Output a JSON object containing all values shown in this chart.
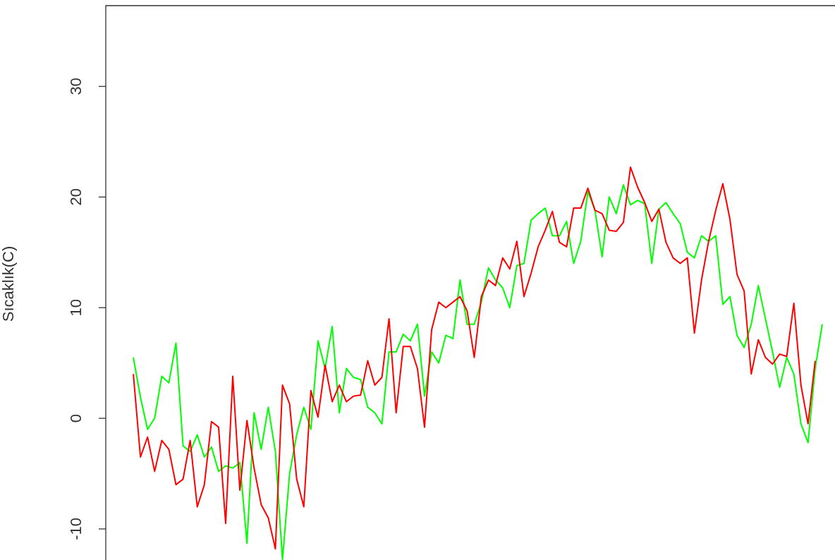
{
  "chart_data": {
    "type": "line",
    "ylabel": "Sıcaklık(C)",
    "tick_labels": "y",
    "categories": [
      null,
      null,
      null,
      null,
      null,
      null,
      null,
      null,
      null,
      null,
      null,
      null,
      null,
      null,
      null,
      null,
      null,
      null,
      null,
      null,
      null,
      null,
      null,
      null,
      null,
      null,
      null,
      null,
      null,
      null,
      null,
      null,
      null,
      null,
      null,
      null,
      null,
      null,
      null,
      null,
      null,
      null,
      null,
      null,
      null,
      null,
      null,
      null,
      null,
      null,
      null,
      null,
      null,
      null,
      null,
      null,
      null,
      null,
      null,
      null,
      null,
      null,
      null,
      null,
      null,
      null,
      null,
      null,
      null,
      null,
      null,
      null,
      null,
      null,
      null,
      null,
      null,
      null,
      null,
      null,
      null,
      null,
      null,
      null,
      null,
      null,
      null,
      null,
      null,
      null,
      null,
      null,
      null,
      null,
      null,
      null,
      null,
      null
    ],
    "series": [
      {
        "color": "#ff0000",
        "values": [
          4.0,
          -3.5,
          -1.7,
          -4.8,
          -2.0,
          -2.8,
          -6.0,
          -5.5,
          -2.0,
          -8.0,
          -6.0,
          -0.3,
          -0.8,
          -9.5,
          3.8,
          -6.5,
          -0.2,
          -4.5,
          -7.8,
          -9.0,
          -11.8,
          3.0,
          1.3,
          -5.5,
          -8.0,
          2.5,
          0.1,
          4.8,
          1.5,
          3.0,
          1.5,
          2.0,
          2.1,
          5.2,
          3.0,
          3.7,
          9.0,
          0.5,
          6.5,
          6.5,
          4.5,
          -0.8,
          8.0,
          10.5,
          10.0,
          10.5,
          11.0,
          9.7,
          5.5,
          11.0,
          12.5,
          12.0,
          14.5,
          13.5,
          16.0,
          11.0,
          13.1,
          15.5,
          17.0,
          18.7,
          15.9,
          15.5,
          19.0,
          19.0,
          20.8,
          18.8,
          18.5,
          17.0,
          16.9,
          17.7,
          22.7,
          20.9,
          19.5,
          17.8,
          18.9,
          15.9,
          14.5,
          14.0,
          14.5,
          7.7,
          12.5,
          16.0,
          18.8,
          21.2,
          18.0,
          13.0,
          11.5,
          4.0,
          7.1,
          5.5,
          4.9,
          5.8,
          5.6,
          10.4,
          3.0,
          -0.5,
          5.2,
          null
        ]
      },
      {
        "color": "#00ff00",
        "values": [
          5.5,
          1.9,
          -1.0,
          0.0,
          3.8,
          3.2,
          6.8,
          -2.5,
          -3.0,
          -1.5,
          -3.5,
          -2.6,
          -4.8,
          -4.3,
          -4.5,
          -4.0,
          -11.3,
          0.5,
          -2.8,
          1.0,
          -3.0,
          -12.8,
          -5.0,
          -1.5,
          1.0,
          -1.0,
          7.0,
          4.5,
          8.3,
          0.5,
          4.5,
          3.7,
          3.5,
          1.0,
          0.5,
          -0.5,
          6.0,
          6.0,
          7.6,
          7.0,
          8.5,
          2.0,
          6.0,
          5.0,
          7.5,
          7.2,
          12.5,
          8.5,
          8.5,
          10.5,
          13.6,
          12.5,
          11.8,
          10.0,
          13.8,
          14.0,
          17.9,
          18.5,
          19.0,
          16.5,
          16.5,
          17.8,
          14.0,
          16.0,
          20.5,
          18.8,
          14.6,
          20.0,
          18.5,
          21.1,
          19.3,
          19.7,
          19.4,
          14.0,
          18.9,
          19.5,
          18.5,
          17.6,
          15.0,
          14.5,
          16.5,
          16.0,
          16.5,
          10.3,
          11.0,
          7.5,
          6.4,
          8.5,
          12.0,
          9.0,
          6.0,
          2.8,
          5.5,
          4.0,
          -0.5,
          -2.2,
          4.5,
          8.5
        ]
      }
    ],
    "ylim": [
      -13,
      37.3
    ],
    "yticks": [
      -10,
      0,
      10,
      20,
      30
    ]
  }
}
